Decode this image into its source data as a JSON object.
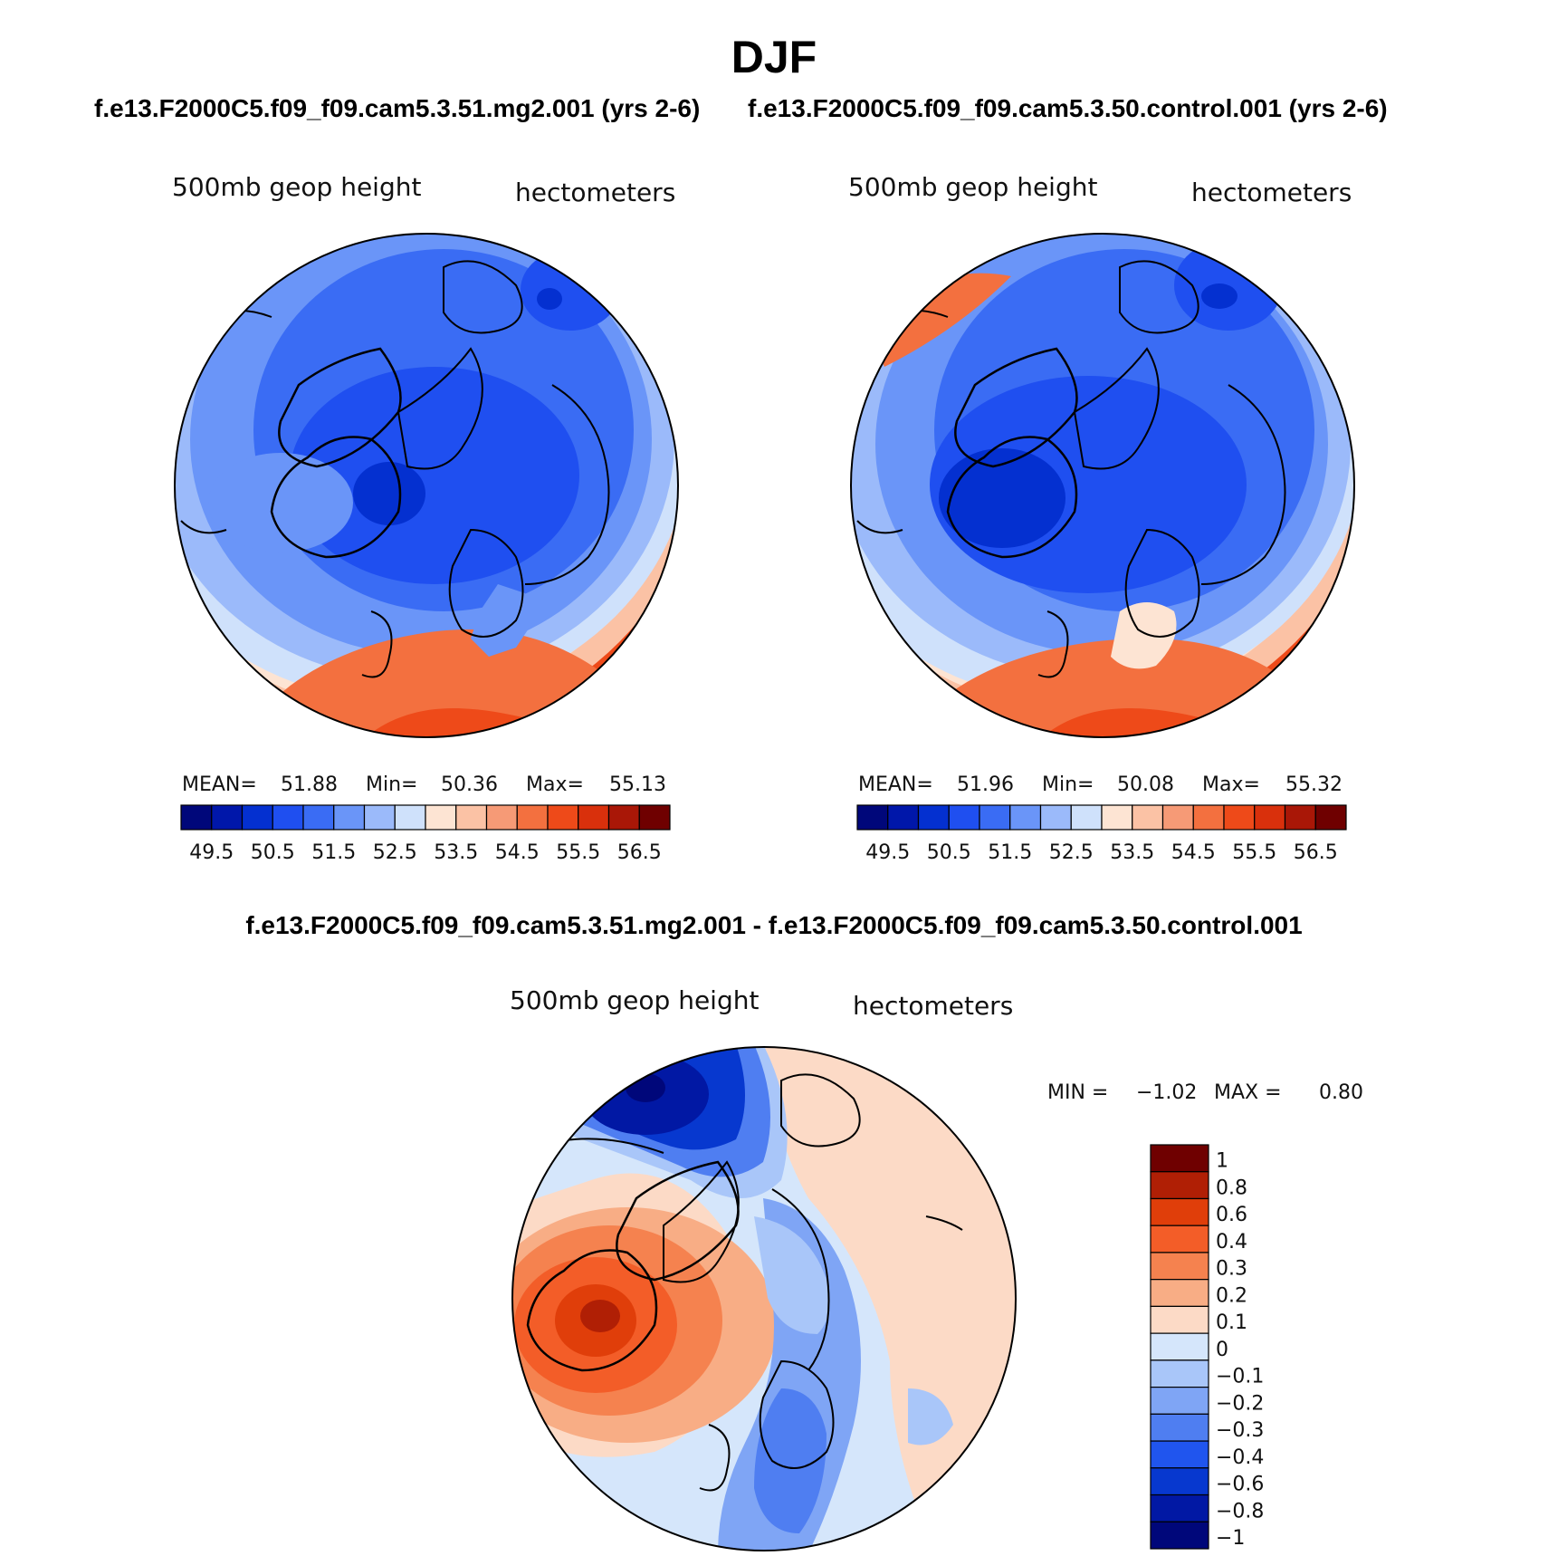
{
  "title": "DJF",
  "panels": {
    "left_title": "f.e13.F2000C5.f09_f09.cam5.3.51.mg2.001 (yrs 2-6)",
    "right_title": "f.e13.F2000C5.f09_f09.cam5.3.50.control.001 (yrs 2-6)",
    "diff_title": "f.e13.F2000C5.f09_f09.cam5.3.51.mg2.001 - f.e13.F2000C5.f09_f09.cam5.3.50.control.001",
    "variable": "500mb geop height",
    "units": "hectometers"
  },
  "stats": {
    "left": {
      "mean_label": "MEAN=",
      "mean": "51.88",
      "min_label": "Min=",
      "min": "50.36",
      "max_label": "Max=",
      "max": "55.13"
    },
    "right": {
      "mean_label": "MEAN=",
      "mean": "51.96",
      "min_label": "Min=",
      "min": "50.08",
      "max_label": "Max=",
      "max": "55.32"
    },
    "diff": {
      "min_label": "MIN =",
      "min": "−1.02",
      "max_label": "MAX =",
      "max": "0.80"
    }
  },
  "chart_data": [
    {
      "type": "heatmap",
      "projection": "north polar stereographic",
      "title": "f.e13.F2000C5.f09_f09.cam5.3.51.mg2.001 (yrs 2-6)",
      "variable": "500mb geop height",
      "units": "hectometers",
      "mean": 51.88,
      "min": 50.36,
      "max": 55.13,
      "contour_levels": [
        49.5,
        50,
        50.5,
        51,
        51.5,
        52,
        52.5,
        53,
        53.5,
        54,
        54.5,
        55,
        55.5,
        56,
        56.5
      ],
      "colorbar_labels": [
        "49.5",
        "50.5",
        "51.5",
        "52.5",
        "53.5",
        "54.5",
        "55.5",
        "56.5"
      ]
    },
    {
      "type": "heatmap",
      "projection": "north polar stereographic",
      "title": "f.e13.F2000C5.f09_f09.cam5.3.50.control.001 (yrs 2-6)",
      "variable": "500mb geop height",
      "units": "hectometers",
      "mean": 51.96,
      "min": 50.08,
      "max": 55.32,
      "contour_levels": [
        49.5,
        50,
        50.5,
        51,
        51.5,
        52,
        52.5,
        53,
        53.5,
        54,
        54.5,
        55,
        55.5,
        56,
        56.5
      ],
      "colorbar_labels": [
        "49.5",
        "50.5",
        "51.5",
        "52.5",
        "53.5",
        "54.5",
        "55.5",
        "56.5"
      ]
    },
    {
      "type": "heatmap",
      "projection": "north polar stereographic",
      "title": "f.e13.F2000C5.f09_f09.cam5.3.51.mg2.001 - f.e13.F2000C5.f09_f09.cam5.3.50.control.001",
      "variable": "500mb geop height",
      "units": "hectometers",
      "min": -1.02,
      "max": 0.8,
      "contour_levels": [
        -1,
        -0.8,
        -0.6,
        -0.4,
        -0.3,
        -0.2,
        -0.1,
        0,
        0.1,
        0.2,
        0.3,
        0.4,
        0.6,
        0.8,
        1
      ],
      "colorbar_labels": [
        "1",
        "0.8",
        "0.6",
        "0.4",
        "0.3",
        "0.2",
        "0.1",
        "0",
        "−0.1",
        "−0.2",
        "−0.3",
        "−0.4",
        "−0.6",
        "−0.8",
        "−1"
      ]
    }
  ],
  "palettes": {
    "main": [
      "#00077a",
      "#0017aa",
      "#0430d0",
      "#1f4ff0",
      "#3a6cf4",
      "#6a95f8",
      "#9bbafa",
      "#cfe1fb",
      "#fde4d3",
      "#fbc2a5",
      "#f69a76",
      "#f3703f",
      "#ee4a19",
      "#d9300c",
      "#a91707",
      "#6f0000"
    ],
    "diff": [
      "#6f0000",
      "#b01f05",
      "#e03e0a",
      "#f35d28",
      "#f5824f",
      "#f8ad85",
      "#fcdac6",
      "#d5e6fb",
      "#a9c6f9",
      "#7fa5f5",
      "#4f7ef1",
      "#2055ee",
      "#0738cf",
      "#0118a4",
      "#00077a"
    ]
  }
}
